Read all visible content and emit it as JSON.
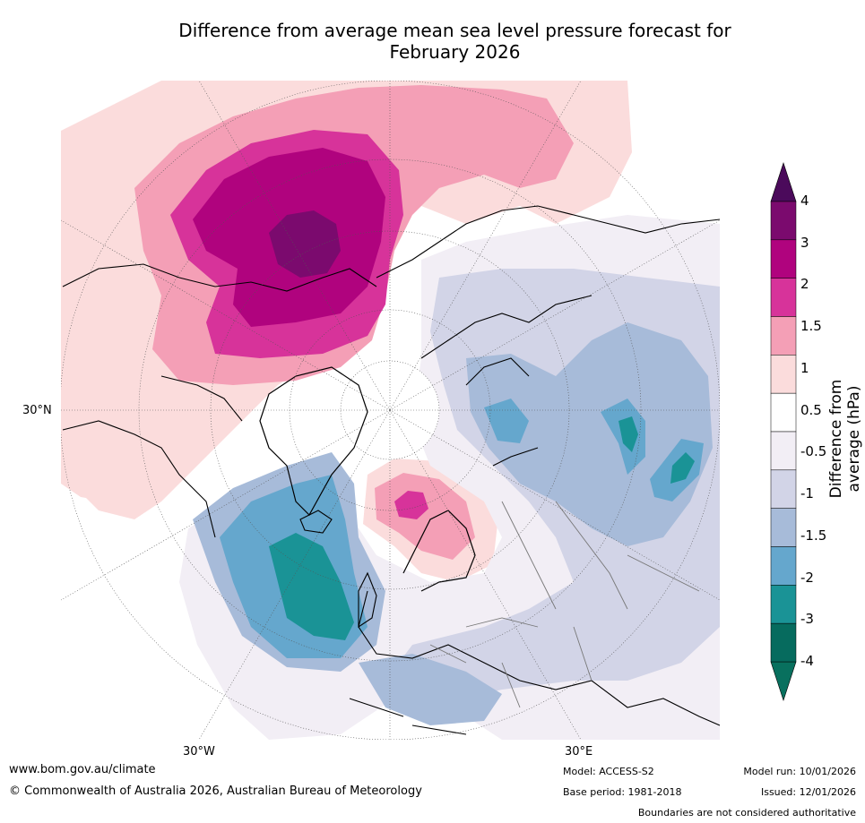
{
  "title_line1": "Difference from average mean sea level pressure forecast for",
  "title_line2": "February 2026",
  "colorbar": {
    "axis_title": "Difference from average (hPa)",
    "labels": [
      "4",
      "3",
      "2",
      "1.5",
      "1",
      "0.5",
      "-0.5",
      "-1",
      "-1.5",
      "-2",
      "-3",
      "-4"
    ],
    "colors": [
      "#7b0a6e",
      "#b0037e",
      "#d7339a",
      "#f49fb6",
      "#fbdcdc",
      "#ffffff",
      "#f2eef5",
      "#d2d4e7",
      "#a7bbd9",
      "#65a7cd",
      "#1a9396",
      "#066b5e"
    ],
    "extend_over_color": "#4b0a5b",
    "extend_under_color": "#08705e"
  },
  "map": {
    "projection": "north-polar-stereographic",
    "lon_labels": [
      "30°W",
      "30°E"
    ],
    "lat_labels": [
      "30°N"
    ]
  },
  "footer": {
    "url": "www.bom.gov.au/climate",
    "copyright": "© Commonwealth of Australia 2026, Australian Bureau of Meteorology",
    "model": "Model: ACCESS-S2",
    "base_period": "Base period: 1981-2018",
    "model_run": "Model run: 10/01/2026",
    "issued": "Issued: 12/01/2026",
    "disclaimer": "Boundaries are not considered authoritative"
  }
}
